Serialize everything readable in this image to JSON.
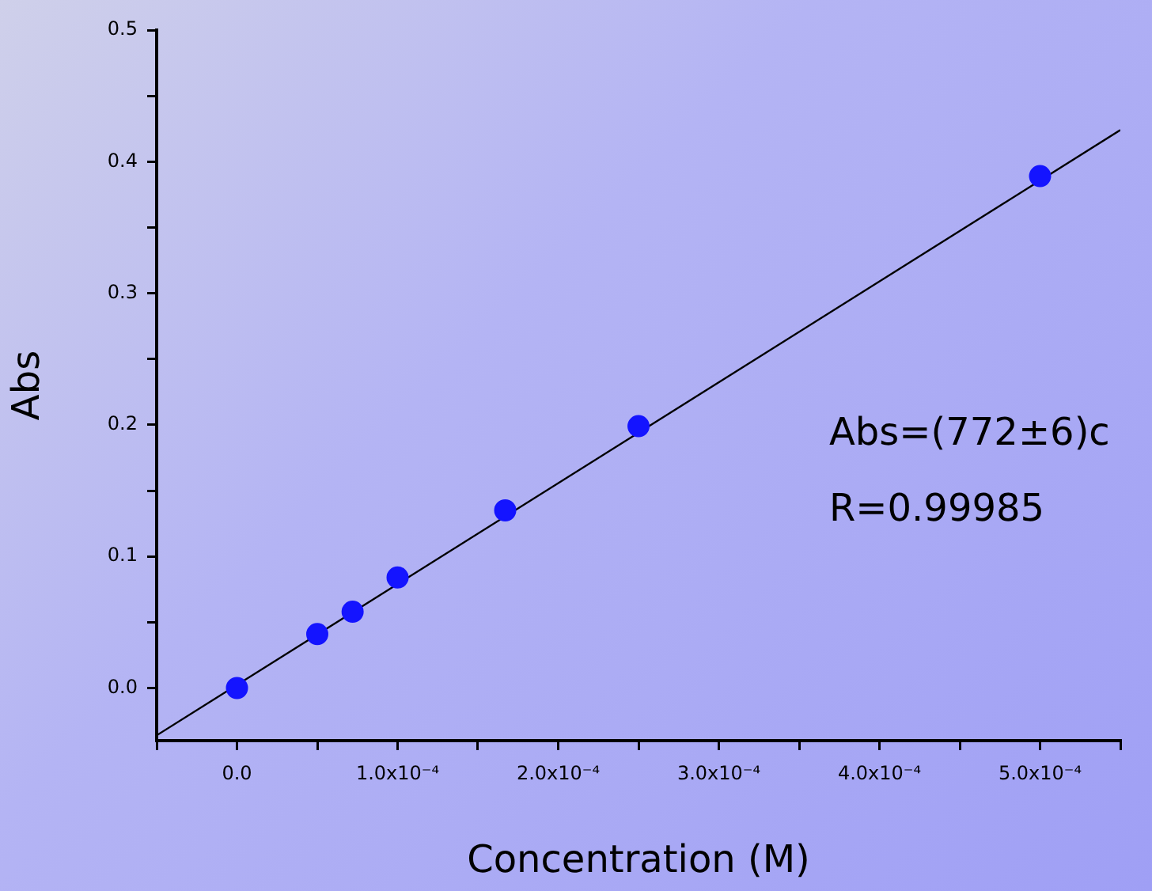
{
  "chart_data": {
    "type": "scatter",
    "xlabel": "Concentration (M)",
    "ylabel": "Abs",
    "x": [
      0,
      5e-05,
      7.2e-05,
      0.0001,
      0.000167,
      0.00025,
      0.0005
    ],
    "series": [
      {
        "color": "#1414ff",
        "values": [
          0,
          0.041,
          0.058,
          0.084,
          0.135,
          0.199,
          0.389
        ]
      },
      {
        "type": "line",
        "color": "#000000",
        "marker": "none",
        "x": [
          -5e-05,
          0.00055
        ],
        "values": [
          -0.036,
          0.424
        ]
      }
    ],
    "marker": "circle",
    "grid": false,
    "legend": false,
    "xlim": [
      -5e-05,
      0.00055
    ],
    "xticks": [
      {
        "value": -5e-05,
        "label": null
      },
      {
        "value": 0,
        "label": "0.0"
      },
      {
        "value": 5e-05,
        "label": null
      },
      {
        "value": 0.0001,
        "label": "1.0x10⁻⁴"
      },
      {
        "value": 0.00015,
        "label": null
      },
      {
        "value": 0.0002,
        "label": "2.0x10⁻⁴"
      },
      {
        "value": 0.00025,
        "label": null
      },
      {
        "value": 0.0003,
        "label": "3.0x10⁻⁴"
      },
      {
        "value": 0.00035,
        "label": null
      },
      {
        "value": 0.0004,
        "label": "4.0x10⁻⁴"
      },
      {
        "value": 0.00045,
        "label": null
      },
      {
        "value": 0.0005,
        "label": "5.0x10⁻⁴"
      },
      {
        "value": 0.00055,
        "label": null
      }
    ],
    "ylim": [
      -0.04,
      0.5
    ],
    "yticks": [
      {
        "value": 0,
        "label": "0.0"
      },
      {
        "value": 0.05,
        "label": null
      },
      0.1,
      {
        "value": 0.15,
        "label": null
      },
      0.2,
      {
        "value": 0.25,
        "label": null
      },
      0.3,
      {
        "value": 0.35,
        "label": null
      },
      0.4,
      {
        "value": 0.45,
        "label": null
      },
      0.5
    ],
    "annotations": [
      "Abs=(772±6)c",
      "R=0.99985"
    ]
  }
}
